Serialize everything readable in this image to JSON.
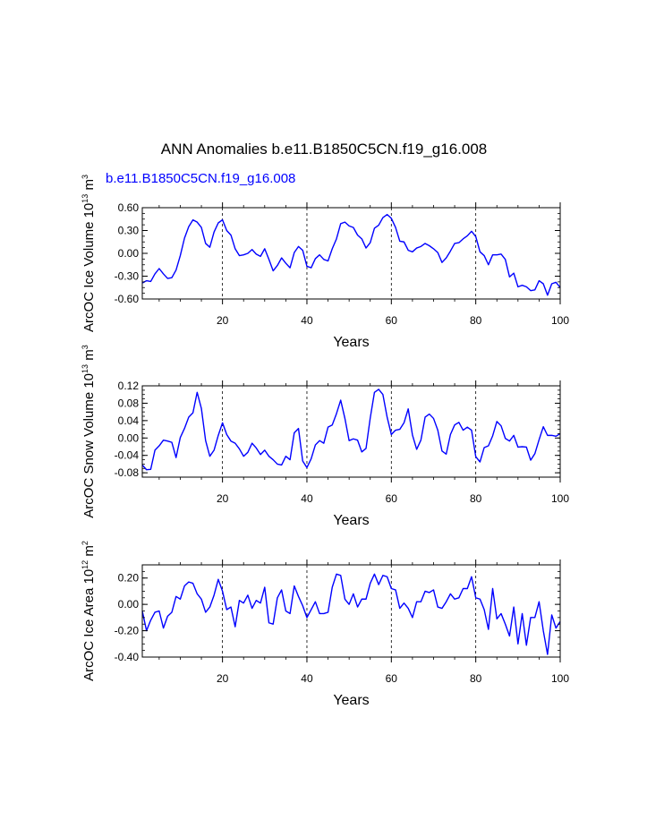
{
  "title": "ANN Anomalies b.e11.B1850C5CN.f19_g16.008",
  "subtitle": "b.e11.B1850C5CN.f19_g16.008",
  "colors": {
    "line": "#0000ff",
    "subtitle": "#0000ff",
    "axis": "#000000",
    "grid": "#000000"
  },
  "chart_data": [
    {
      "type": "line",
      "name": "ice-volume",
      "ylabel": {
        "base": "ArcOC Ice Volume 10",
        "exp": "13",
        "unit": " m",
        "unit_exp": "3"
      },
      "xlabel": "Years",
      "xlim": [
        1,
        100
      ],
      "ylim": [
        -0.6,
        0.6
      ],
      "yticks": [
        -0.6,
        -0.3,
        0.0,
        0.3,
        0.6
      ],
      "ytick_labels": [
        "-0.60",
        "-0.30",
        "0.00",
        "0.30",
        "0.60"
      ],
      "xticks": [
        20,
        40,
        60,
        80,
        100
      ],
      "xtick_labels": [
        "20",
        "40",
        "60",
        "80",
        "100"
      ],
      "grid_x": [
        20,
        40,
        60,
        80
      ],
      "series": [
        {
          "name": "ArcOC Ice Volume",
          "values": [
            -0.39,
            -0.36,
            -0.37,
            -0.27,
            -0.2,
            -0.27,
            -0.33,
            -0.32,
            -0.22,
            -0.03,
            0.2,
            0.35,
            0.44,
            0.41,
            0.34,
            0.13,
            0.08,
            0.28,
            0.4,
            0.44,
            0.3,
            0.24,
            0.06,
            -0.03,
            -0.02,
            0.0,
            0.05,
            -0.01,
            -0.04,
            0.06,
            -0.08,
            -0.23,
            -0.16,
            -0.06,
            -0.13,
            -0.19,
            0.01,
            0.09,
            0.04,
            -0.17,
            -0.19,
            -0.07,
            -0.02,
            -0.08,
            -0.1,
            0.06,
            0.19,
            0.39,
            0.41,
            0.36,
            0.34,
            0.24,
            0.19,
            0.07,
            0.14,
            0.33,
            0.37,
            0.47,
            0.51,
            0.46,
            0.34,
            0.16,
            0.15,
            0.04,
            0.02,
            0.07,
            0.09,
            0.13,
            0.1,
            0.06,
            0.01,
            -0.12,
            -0.06,
            0.03,
            0.13,
            0.14,
            0.19,
            0.23,
            0.29,
            0.22,
            0.02,
            -0.03,
            -0.15,
            -0.02,
            -0.02,
            -0.01,
            -0.08,
            -0.31,
            -0.26,
            -0.44,
            -0.42,
            -0.44,
            -0.49,
            -0.48,
            -0.36,
            -0.4,
            -0.55,
            -0.4,
            -0.38,
            -0.45
          ]
        }
      ]
    },
    {
      "type": "line",
      "name": "snow-volume",
      "ylabel": {
        "base": "ArcOC Snow Volume 10",
        "exp": "13",
        "unit": " m",
        "unit_exp": "3"
      },
      "xlabel": "Years",
      "xlim": [
        1,
        100
      ],
      "ylim": [
        -0.09,
        0.12
      ],
      "yticks": [
        -0.08,
        -0.04,
        0.0,
        0.04,
        0.08,
        0.12
      ],
      "ytick_labels": [
        "-0.08",
        "-0.04",
        "0.00",
        "0.04",
        "0.08",
        "0.12"
      ],
      "xticks": [
        20,
        40,
        60,
        80,
        100
      ],
      "xtick_labels": [
        "20",
        "40",
        "60",
        "80",
        "100"
      ],
      "grid_x": [
        20,
        40,
        60,
        80
      ],
      "series": [
        {
          "name": "ArcOC Snow Volume",
          "values": [
            -0.062,
            -0.073,
            -0.072,
            -0.028,
            -0.018,
            -0.005,
            -0.007,
            -0.01,
            -0.045,
            0.001,
            0.022,
            0.048,
            0.058,
            0.105,
            0.068,
            -0.006,
            -0.042,
            -0.028,
            0.006,
            0.035,
            0.008,
            -0.007,
            -0.012,
            -0.025,
            -0.042,
            -0.033,
            -0.012,
            -0.023,
            -0.038,
            -0.028,
            -0.042,
            -0.05,
            -0.06,
            -0.062,
            -0.042,
            -0.05,
            0.012,
            0.022,
            -0.053,
            -0.068,
            -0.048,
            -0.016,
            -0.006,
            -0.012,
            0.025,
            0.03,
            0.056,
            0.087,
            0.045,
            -0.006,
            -0.002,
            -0.005,
            -0.032,
            -0.024,
            0.046,
            0.105,
            0.112,
            0.1,
            0.048,
            0.008,
            0.018,
            0.02,
            0.035,
            0.067,
            0.007,
            -0.026,
            -0.005,
            0.048,
            0.055,
            0.045,
            0.018,
            -0.03,
            -0.037,
            0.008,
            0.03,
            0.036,
            0.018,
            0.025,
            0.018,
            -0.043,
            -0.055,
            -0.022,
            -0.018,
            0.005,
            0.038,
            0.028,
            -0.001,
            -0.007,
            0.006,
            -0.021,
            -0.02,
            -0.021,
            -0.051,
            -0.036,
            -0.004,
            0.026,
            0.006,
            0.006,
            0.004,
            0.01
          ]
        }
      ]
    },
    {
      "type": "line",
      "name": "ice-area",
      "ylabel": {
        "base": "ArcOC Ice Area 10",
        "exp": "12",
        "unit": " m",
        "unit_exp": "2"
      },
      "xlabel": "Years",
      "xlim": [
        1,
        100
      ],
      "ylim": [
        -0.4,
        0.3
      ],
      "yticks": [
        -0.4,
        -0.2,
        0.0,
        0.2
      ],
      "ytick_labels": [
        "-0.40",
        "-0.20",
        "0.00",
        "0.20"
      ],
      "xticks": [
        20,
        40,
        60,
        80,
        100
      ],
      "xtick_labels": [
        "20",
        "40",
        "60",
        "80",
        "100"
      ],
      "grid_x": [
        20,
        40,
        60,
        80
      ],
      "series": [
        {
          "name": "ArcOC Ice Area",
          "values": [
            -0.05,
            -0.2,
            -0.12,
            -0.06,
            -0.05,
            -0.18,
            -0.09,
            -0.06,
            0.06,
            0.04,
            0.14,
            0.17,
            0.16,
            0.08,
            0.04,
            -0.06,
            -0.02,
            0.07,
            0.19,
            0.1,
            -0.04,
            -0.02,
            -0.17,
            0.03,
            0.01,
            0.07,
            -0.03,
            0.03,
            0.01,
            0.13,
            -0.14,
            -0.15,
            0.05,
            0.11,
            -0.05,
            -0.07,
            0.14,
            0.06,
            -0.01,
            -0.1,
            -0.04,
            0.02,
            -0.07,
            -0.07,
            -0.06,
            0.13,
            0.23,
            0.22,
            0.04,
            0.0,
            0.08,
            -0.02,
            0.04,
            0.04,
            0.16,
            0.23,
            0.15,
            0.22,
            0.21,
            0.12,
            0.11,
            -0.03,
            0.01,
            -0.03,
            -0.1,
            0.02,
            0.02,
            0.1,
            0.09,
            0.11,
            -0.02,
            -0.03,
            0.02,
            0.08,
            0.04,
            0.05,
            0.12,
            0.12,
            0.21,
            0.05,
            0.04,
            -0.04,
            -0.19,
            0.12,
            -0.11,
            -0.07,
            -0.15,
            -0.24,
            -0.02,
            -0.3,
            -0.07,
            -0.31,
            -0.1,
            -0.1,
            0.02,
            -0.2,
            -0.38,
            -0.08,
            -0.18,
            -0.13
          ]
        }
      ]
    }
  ]
}
